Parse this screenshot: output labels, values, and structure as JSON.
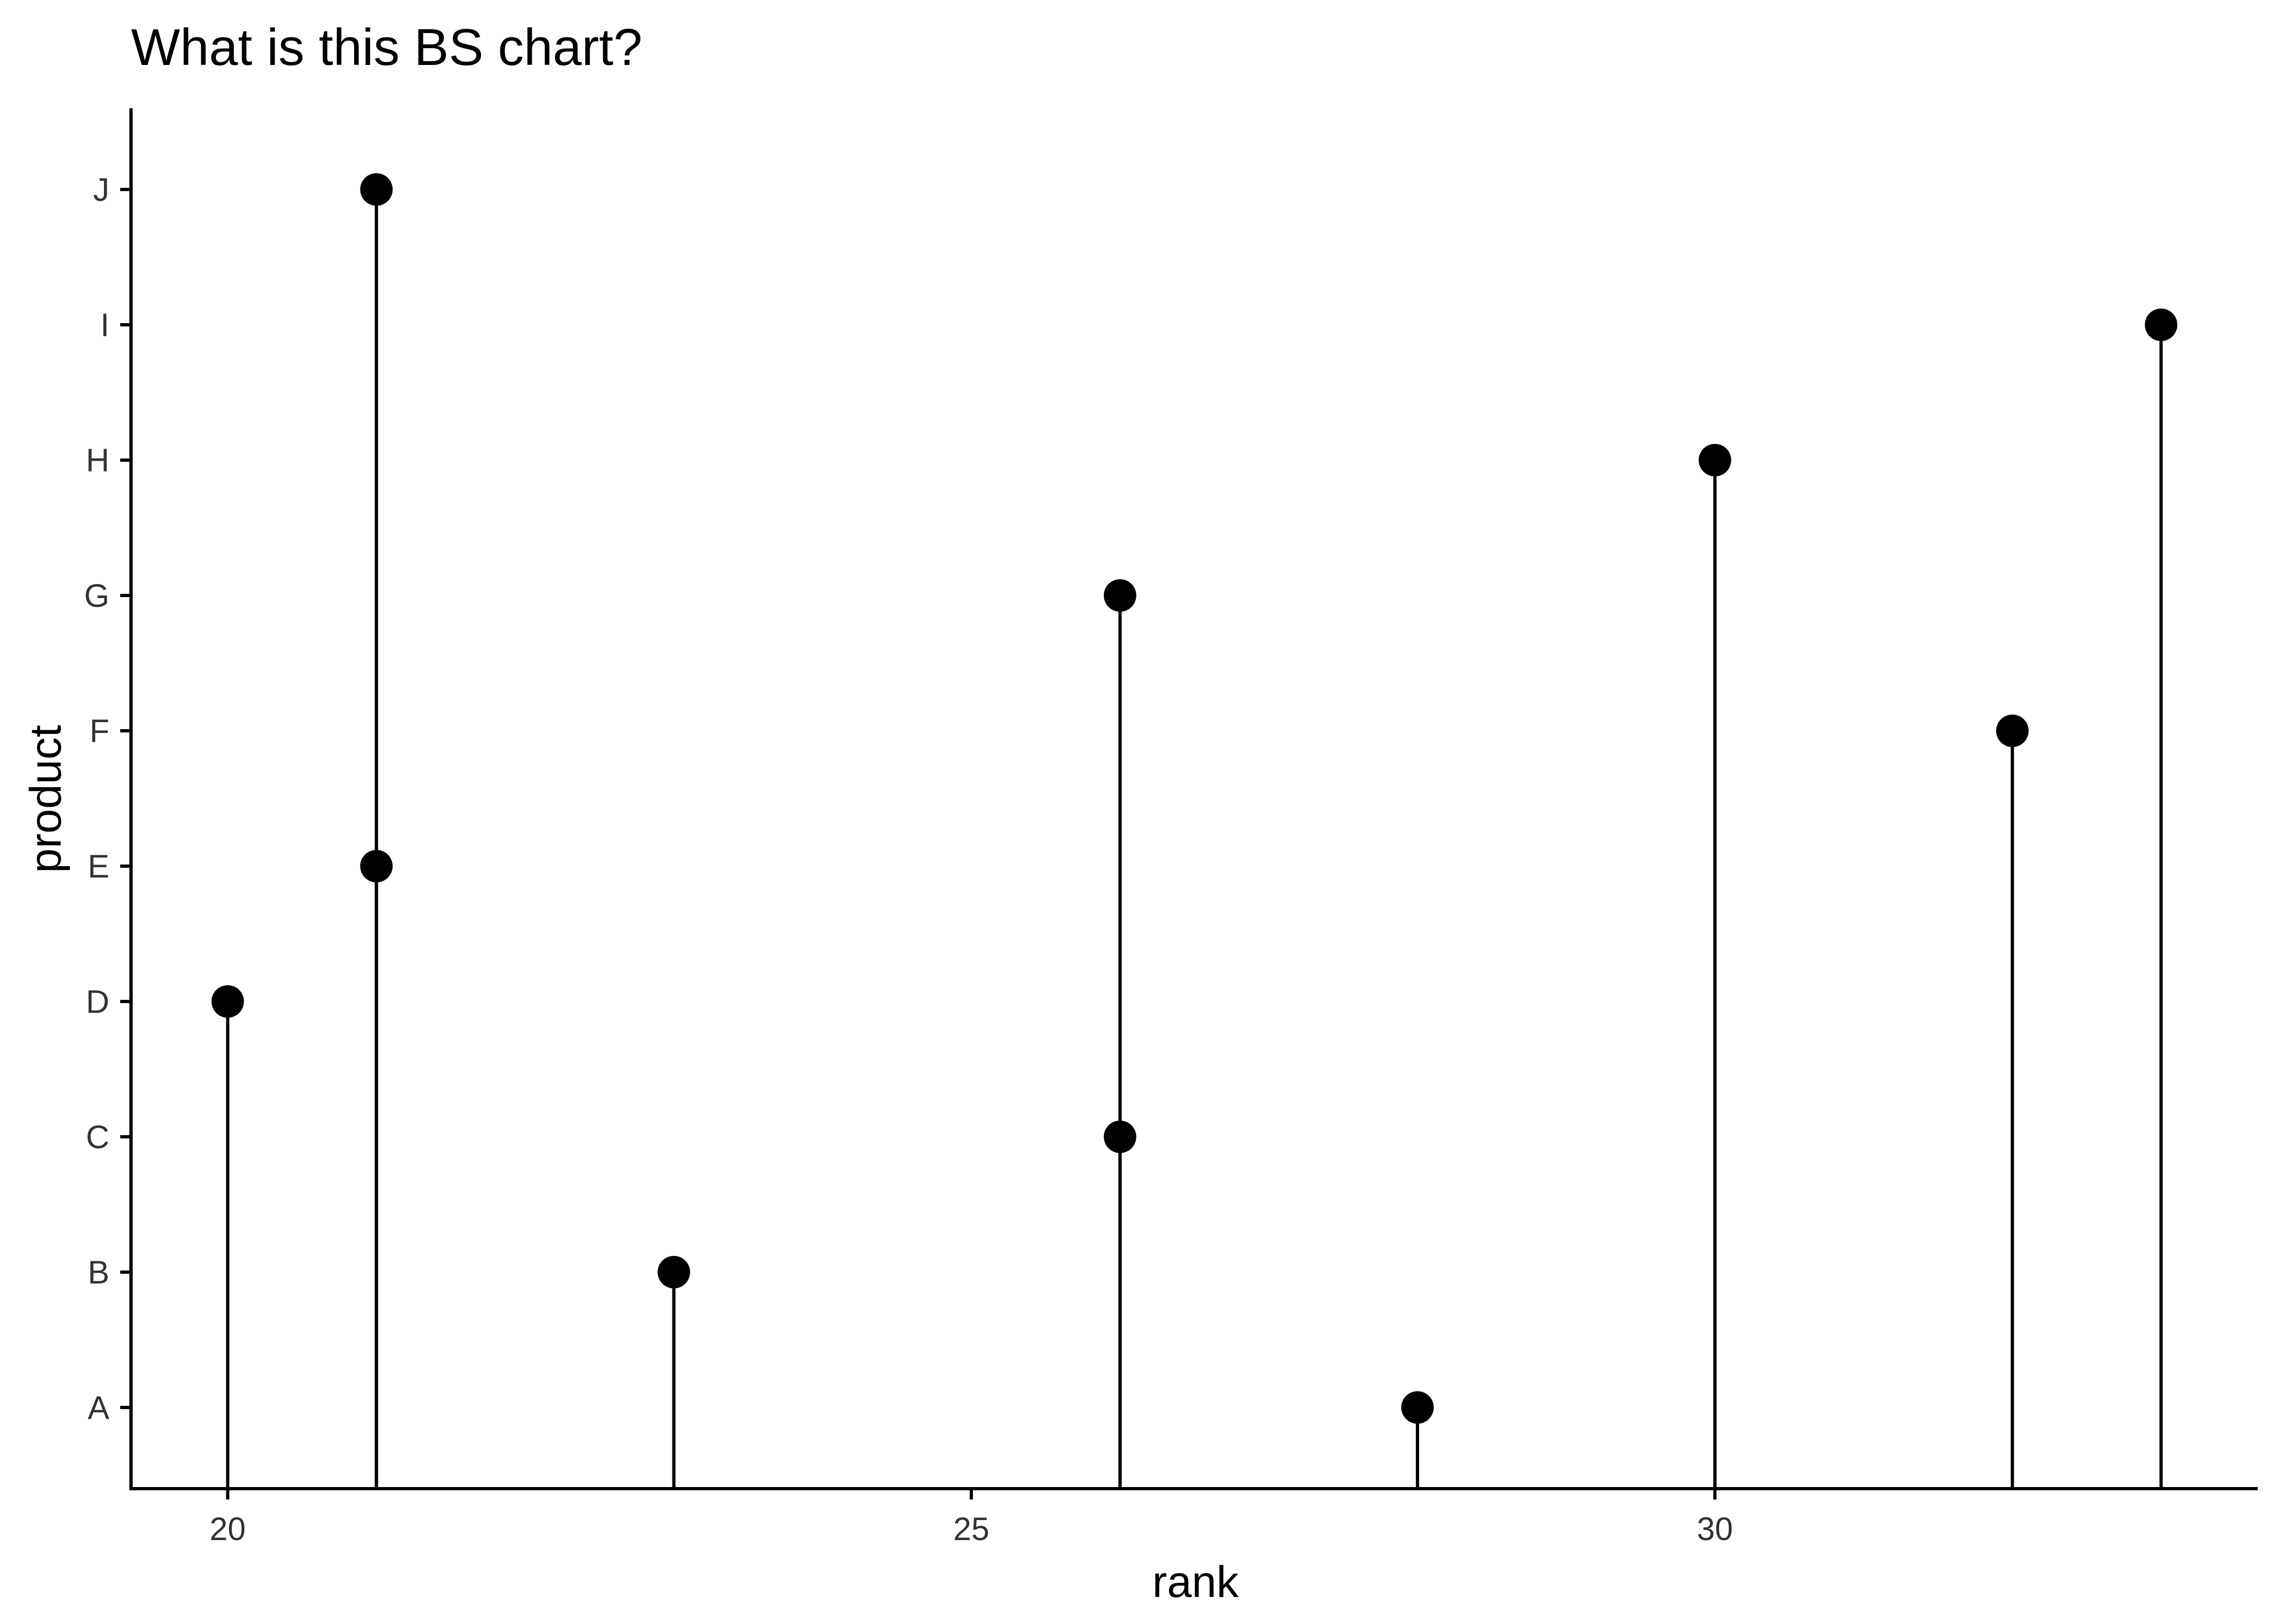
{
  "chart_data": {
    "type": "lollipop",
    "title": "What is this BS chart?",
    "xlabel": "rank",
    "ylabel": "product",
    "xlim": [
      19.35,
      33.65
    ],
    "x_ticks": [
      20,
      25,
      30
    ],
    "categories": [
      "A",
      "B",
      "C",
      "D",
      "E",
      "F",
      "G",
      "H",
      "I",
      "J"
    ],
    "points": [
      {
        "product": "A",
        "rank": 28
      },
      {
        "product": "B",
        "rank": 23
      },
      {
        "product": "C",
        "rank": 26
      },
      {
        "product": "D",
        "rank": 20
      },
      {
        "product": "E",
        "rank": 21
      },
      {
        "product": "F",
        "rank": 32
      },
      {
        "product": "G",
        "rank": 26
      },
      {
        "product": "H",
        "rank": 30
      },
      {
        "product": "I",
        "rank": 33
      },
      {
        "product": "J",
        "rank": 21
      }
    ],
    "grid": false,
    "legend": "none",
    "colors": {
      "mark": "#000000",
      "axis": "#000000",
      "tick_label": "#333333"
    }
  }
}
